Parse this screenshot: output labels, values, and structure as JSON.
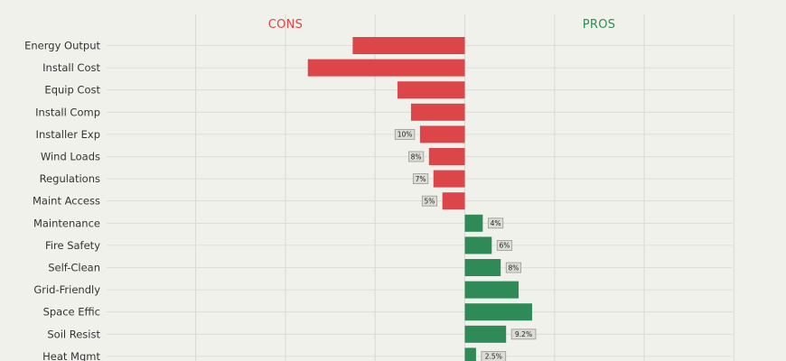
{
  "chart_data": {
    "type": "bar",
    "orientation": "horizontal-diverging",
    "headers": {
      "cons": "CONS",
      "pros": "PROS"
    },
    "colors": {
      "cons": "#dc4648",
      "pros": "#2e8b57",
      "background": "#f1f1ec",
      "grid": "#d9d9d4"
    },
    "x_range": [
      -30,
      30
    ],
    "gridlines": [
      -30,
      -20,
      -10,
      0,
      10,
      20,
      30
    ],
    "categories": [
      "Energy Output",
      "Install Cost",
      "Equip Cost",
      "Install Comp",
      "Installer Exp",
      "Wind Loads",
      "Regulations",
      "Maint Access",
      "Maintenance",
      "Fire Safety",
      "Self-Clean",
      "Grid-Friendly",
      "Space Effic",
      "Soil Resist",
      "Heat Mgmt"
    ],
    "values": [
      -12.5,
      -17.5,
      -7.5,
      -6,
      -5,
      -4,
      -3.5,
      -2.5,
      2,
      3,
      4,
      6,
      7.5,
      4.6,
      1.25
    ],
    "labels": [
      "",
      "",
      "",
      "",
      "10%",
      "8%",
      "7%",
      "5%",
      "4%",
      "6%",
      "8%",
      "",
      "",
      "9.2%",
      "2.5%"
    ],
    "legend": "none",
    "grid": true
  }
}
